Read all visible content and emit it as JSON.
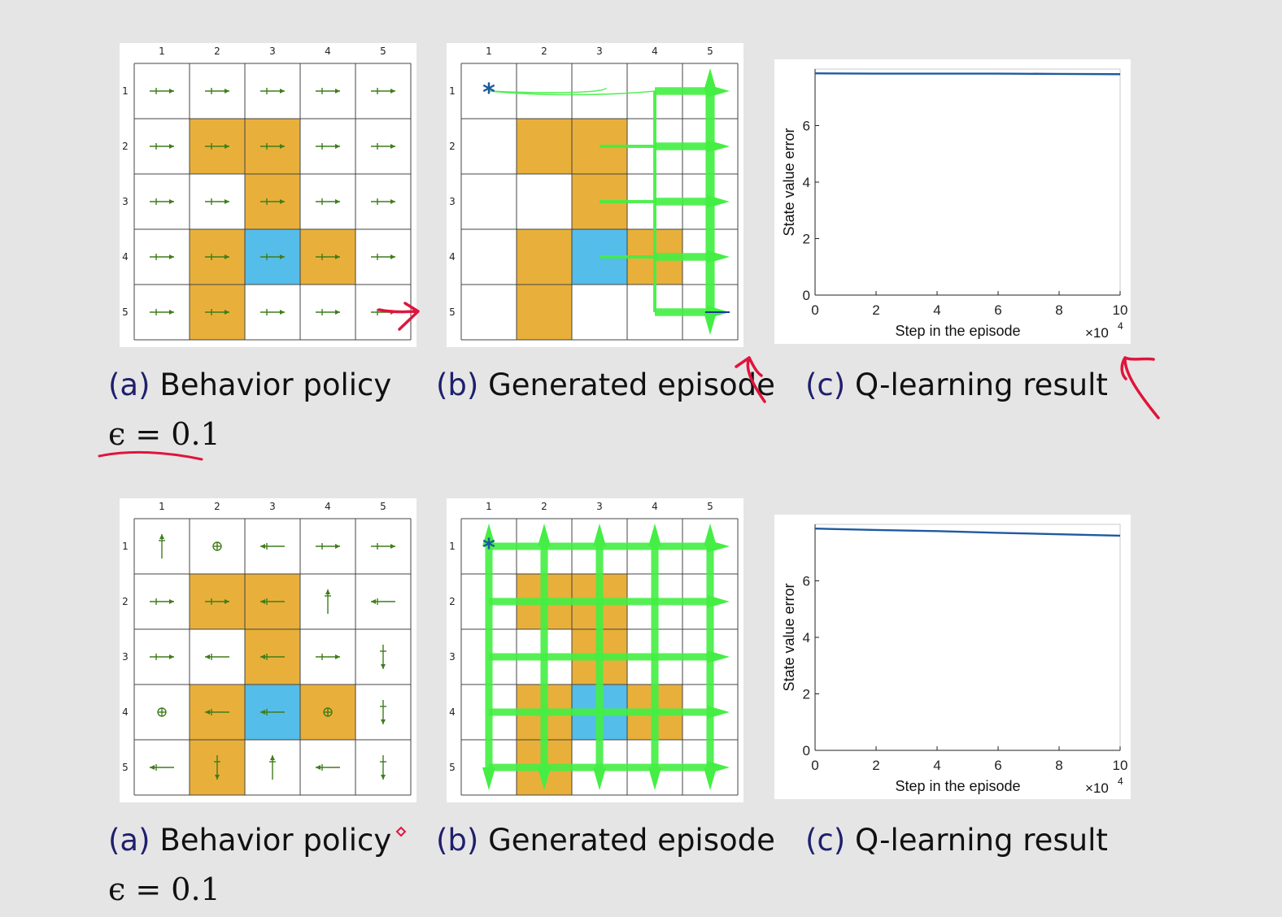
{
  "rows": [
    {
      "id": "top",
      "grid_labels": [
        "1",
        "2",
        "3",
        "4",
        "5"
      ],
      "policy_grid": {
        "forbidden": [
          [
            2,
            2
          ],
          [
            2,
            3
          ],
          [
            3,
            3
          ],
          [
            4,
            2
          ],
          [
            4,
            4
          ],
          [
            5,
            2
          ]
        ],
        "target": [
          4,
          3
        ],
        "actions": [
          [
            "right",
            "right",
            "right",
            "right",
            "right"
          ],
          [
            "right",
            "right",
            "right",
            "right",
            "right"
          ],
          [
            "right",
            "right",
            "right",
            "right",
            "right"
          ],
          [
            "right",
            "right",
            "right",
            "right",
            "right"
          ],
          [
            "right",
            "right",
            "right",
            "right",
            "right"
          ]
        ]
      },
      "episode_grid": {
        "forbidden": [
          [
            2,
            2
          ],
          [
            2,
            3
          ],
          [
            3,
            3
          ],
          [
            4,
            2
          ],
          [
            4,
            4
          ],
          [
            5,
            2
          ]
        ],
        "target": [
          4,
          3
        ],
        "start": [
          1,
          1
        ],
        "start_marker": "*"
      },
      "chart_data": {
        "type": "line",
        "xlabel": "Step in the episode",
        "ylabel": "State value error",
        "x_multiplier": "×10",
        "x_multiplier_exp": "4",
        "xlim": [
          0,
          10
        ],
        "ylim": [
          0,
          8
        ],
        "xticks": [
          "0",
          "2",
          "4",
          "6",
          "8",
          "10"
        ],
        "yticks": [
          "0",
          "2",
          "4",
          "6"
        ],
        "series": [
          {
            "x": [
              0,
              2,
              4,
              6,
              8,
              10
            ],
            "values": [
              7.85,
              7.84,
              7.84,
              7.84,
              7.83,
              7.82
            ]
          }
        ]
      },
      "captions": {
        "a_label": "(a)",
        "a_text": "Behavior policy",
        "b_label": "(b)",
        "b_text": "Generated episode",
        "c_label": "(c)",
        "c_text": "Q-learning result"
      },
      "epsilon": "ϵ = 0.1"
    },
    {
      "id": "bottom",
      "grid_labels": [
        "1",
        "2",
        "3",
        "4",
        "5"
      ],
      "policy_grid": {
        "forbidden": [
          [
            2,
            2
          ],
          [
            2,
            3
          ],
          [
            3,
            3
          ],
          [
            4,
            2
          ],
          [
            4,
            4
          ],
          [
            5,
            2
          ]
        ],
        "target": [
          4,
          3
        ],
        "actions": [
          [
            "up",
            "stay",
            "left",
            "right",
            "right"
          ],
          [
            "right",
            "right",
            "left",
            "up",
            "left"
          ],
          [
            "right",
            "left",
            "left",
            "right",
            "down"
          ],
          [
            "stay",
            "left",
            "left",
            "stay",
            "down"
          ],
          [
            "left",
            "down",
            "up",
            "left",
            "down"
          ]
        ]
      },
      "episode_grid": {
        "forbidden": [
          [
            2,
            2
          ],
          [
            2,
            3
          ],
          [
            3,
            3
          ],
          [
            4,
            2
          ],
          [
            4,
            4
          ],
          [
            5,
            2
          ]
        ],
        "target": [
          4,
          3
        ],
        "start": [
          1,
          1
        ],
        "start_marker": "*"
      },
      "chart_data": {
        "type": "line",
        "xlabel": "Step in the episode",
        "ylabel": "State value error",
        "x_multiplier": "×10",
        "x_multiplier_exp": "4",
        "xlim": [
          0,
          10
        ],
        "ylim": [
          0,
          8
        ],
        "xticks": [
          "0",
          "2",
          "4",
          "6",
          "8",
          "10"
        ],
        "yticks": [
          "0",
          "2",
          "4",
          "6"
        ],
        "series": [
          {
            "x": [
              0,
              2,
              4,
              6,
              8,
              10
            ],
            "values": [
              7.85,
              7.8,
              7.76,
              7.7,
              7.65,
              7.6
            ]
          }
        ]
      },
      "captions": {
        "a_label": "(a)",
        "a_text": "Behavior policy",
        "b_label": "(b)",
        "b_text": "Generated episode",
        "c_label": "(c)",
        "c_text": "Q-learning result"
      },
      "epsilon": "ϵ = 0.1"
    }
  ],
  "colors": {
    "forbidden": "#e8b03a",
    "target": "#55bde9",
    "arrow": "#3f7d1a",
    "trajectory": "#44ee44",
    "curve": "#1e5aa0",
    "caption_label": "#1f1f6e",
    "annotation": "#e0143c"
  }
}
